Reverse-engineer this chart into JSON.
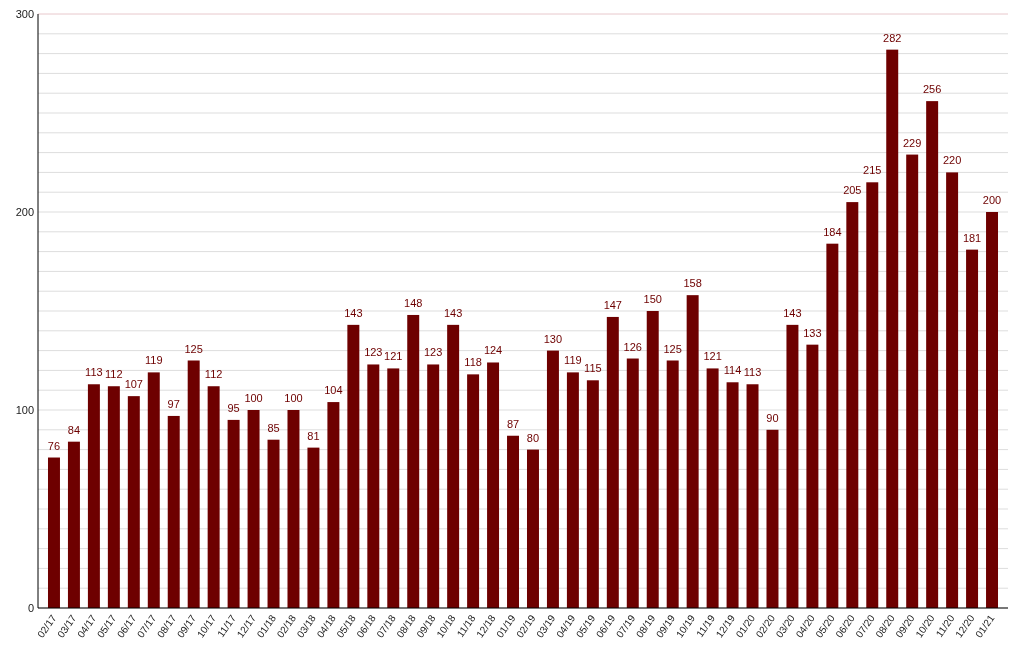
{
  "chart_data": {
    "type": "bar",
    "categories": [
      "02/17",
      "03/17",
      "04/17",
      "05/17",
      "06/17",
      "07/17",
      "08/17",
      "09/17",
      "10/17",
      "11/17",
      "12/17",
      "01/18",
      "02/18",
      "03/18",
      "04/18",
      "05/18",
      "06/18",
      "07/18",
      "08/18",
      "09/18",
      "10/18",
      "11/18",
      "12/18",
      "01/19",
      "02/19",
      "03/19",
      "04/19",
      "05/19",
      "06/19",
      "07/19",
      "08/19",
      "09/19",
      "10/19",
      "11/19",
      "12/19",
      "01/20",
      "02/20",
      "03/20",
      "04/20",
      "05/20",
      "06/20",
      "07/20",
      "08/20",
      "09/20",
      "10/20",
      "11/20",
      "12/20",
      "01/21"
    ],
    "values": [
      76,
      84,
      113,
      112,
      107,
      119,
      97,
      125,
      112,
      95,
      100,
      85,
      100,
      81,
      104,
      143,
      123,
      121,
      148,
      123,
      143,
      118,
      124,
      87,
      80,
      130,
      119,
      115,
      147,
      126,
      150,
      125,
      158,
      121,
      114,
      113,
      90,
      143,
      133,
      184,
      205,
      215,
      282,
      229,
      256,
      220,
      181,
      200
    ],
    "color": "#6e0000",
    "ylim": [
      0,
      300
    ],
    "yticks": [
      0,
      {
        "value": 10,
        "label": null
      },
      {
        "value": 20,
        "label": null
      },
      {
        "value": 30,
        "label": null
      },
      {
        "value": 40,
        "label": null
      },
      {
        "value": 50,
        "label": null
      },
      {
        "value": 60,
        "label": null
      },
      {
        "value": 70,
        "label": null
      },
      {
        "value": 80,
        "label": null
      },
      {
        "value": 90,
        "label": null
      },
      100,
      {
        "value": 110,
        "label": null
      },
      {
        "value": 120,
        "label": null
      },
      {
        "value": 130,
        "label": null
      },
      {
        "value": 140,
        "label": null
      },
      {
        "value": 150,
        "label": null
      },
      {
        "value": 160,
        "label": null
      },
      {
        "value": 170,
        "label": null
      },
      {
        "value": 180,
        "label": null
      },
      {
        "value": 190,
        "label": null
      },
      200,
      {
        "value": 210,
        "label": null
      },
      {
        "value": 220,
        "label": null
      },
      {
        "value": 230,
        "label": null
      },
      {
        "value": 240,
        "label": null
      },
      {
        "value": 250,
        "label": null
      },
      {
        "value": 260,
        "label": null
      },
      {
        "value": 270,
        "label": null
      },
      {
        "value": 280,
        "label": null
      },
      {
        "value": 290,
        "label": null
      },
      300
    ],
    "grid": "y",
    "data_labels": true
  }
}
